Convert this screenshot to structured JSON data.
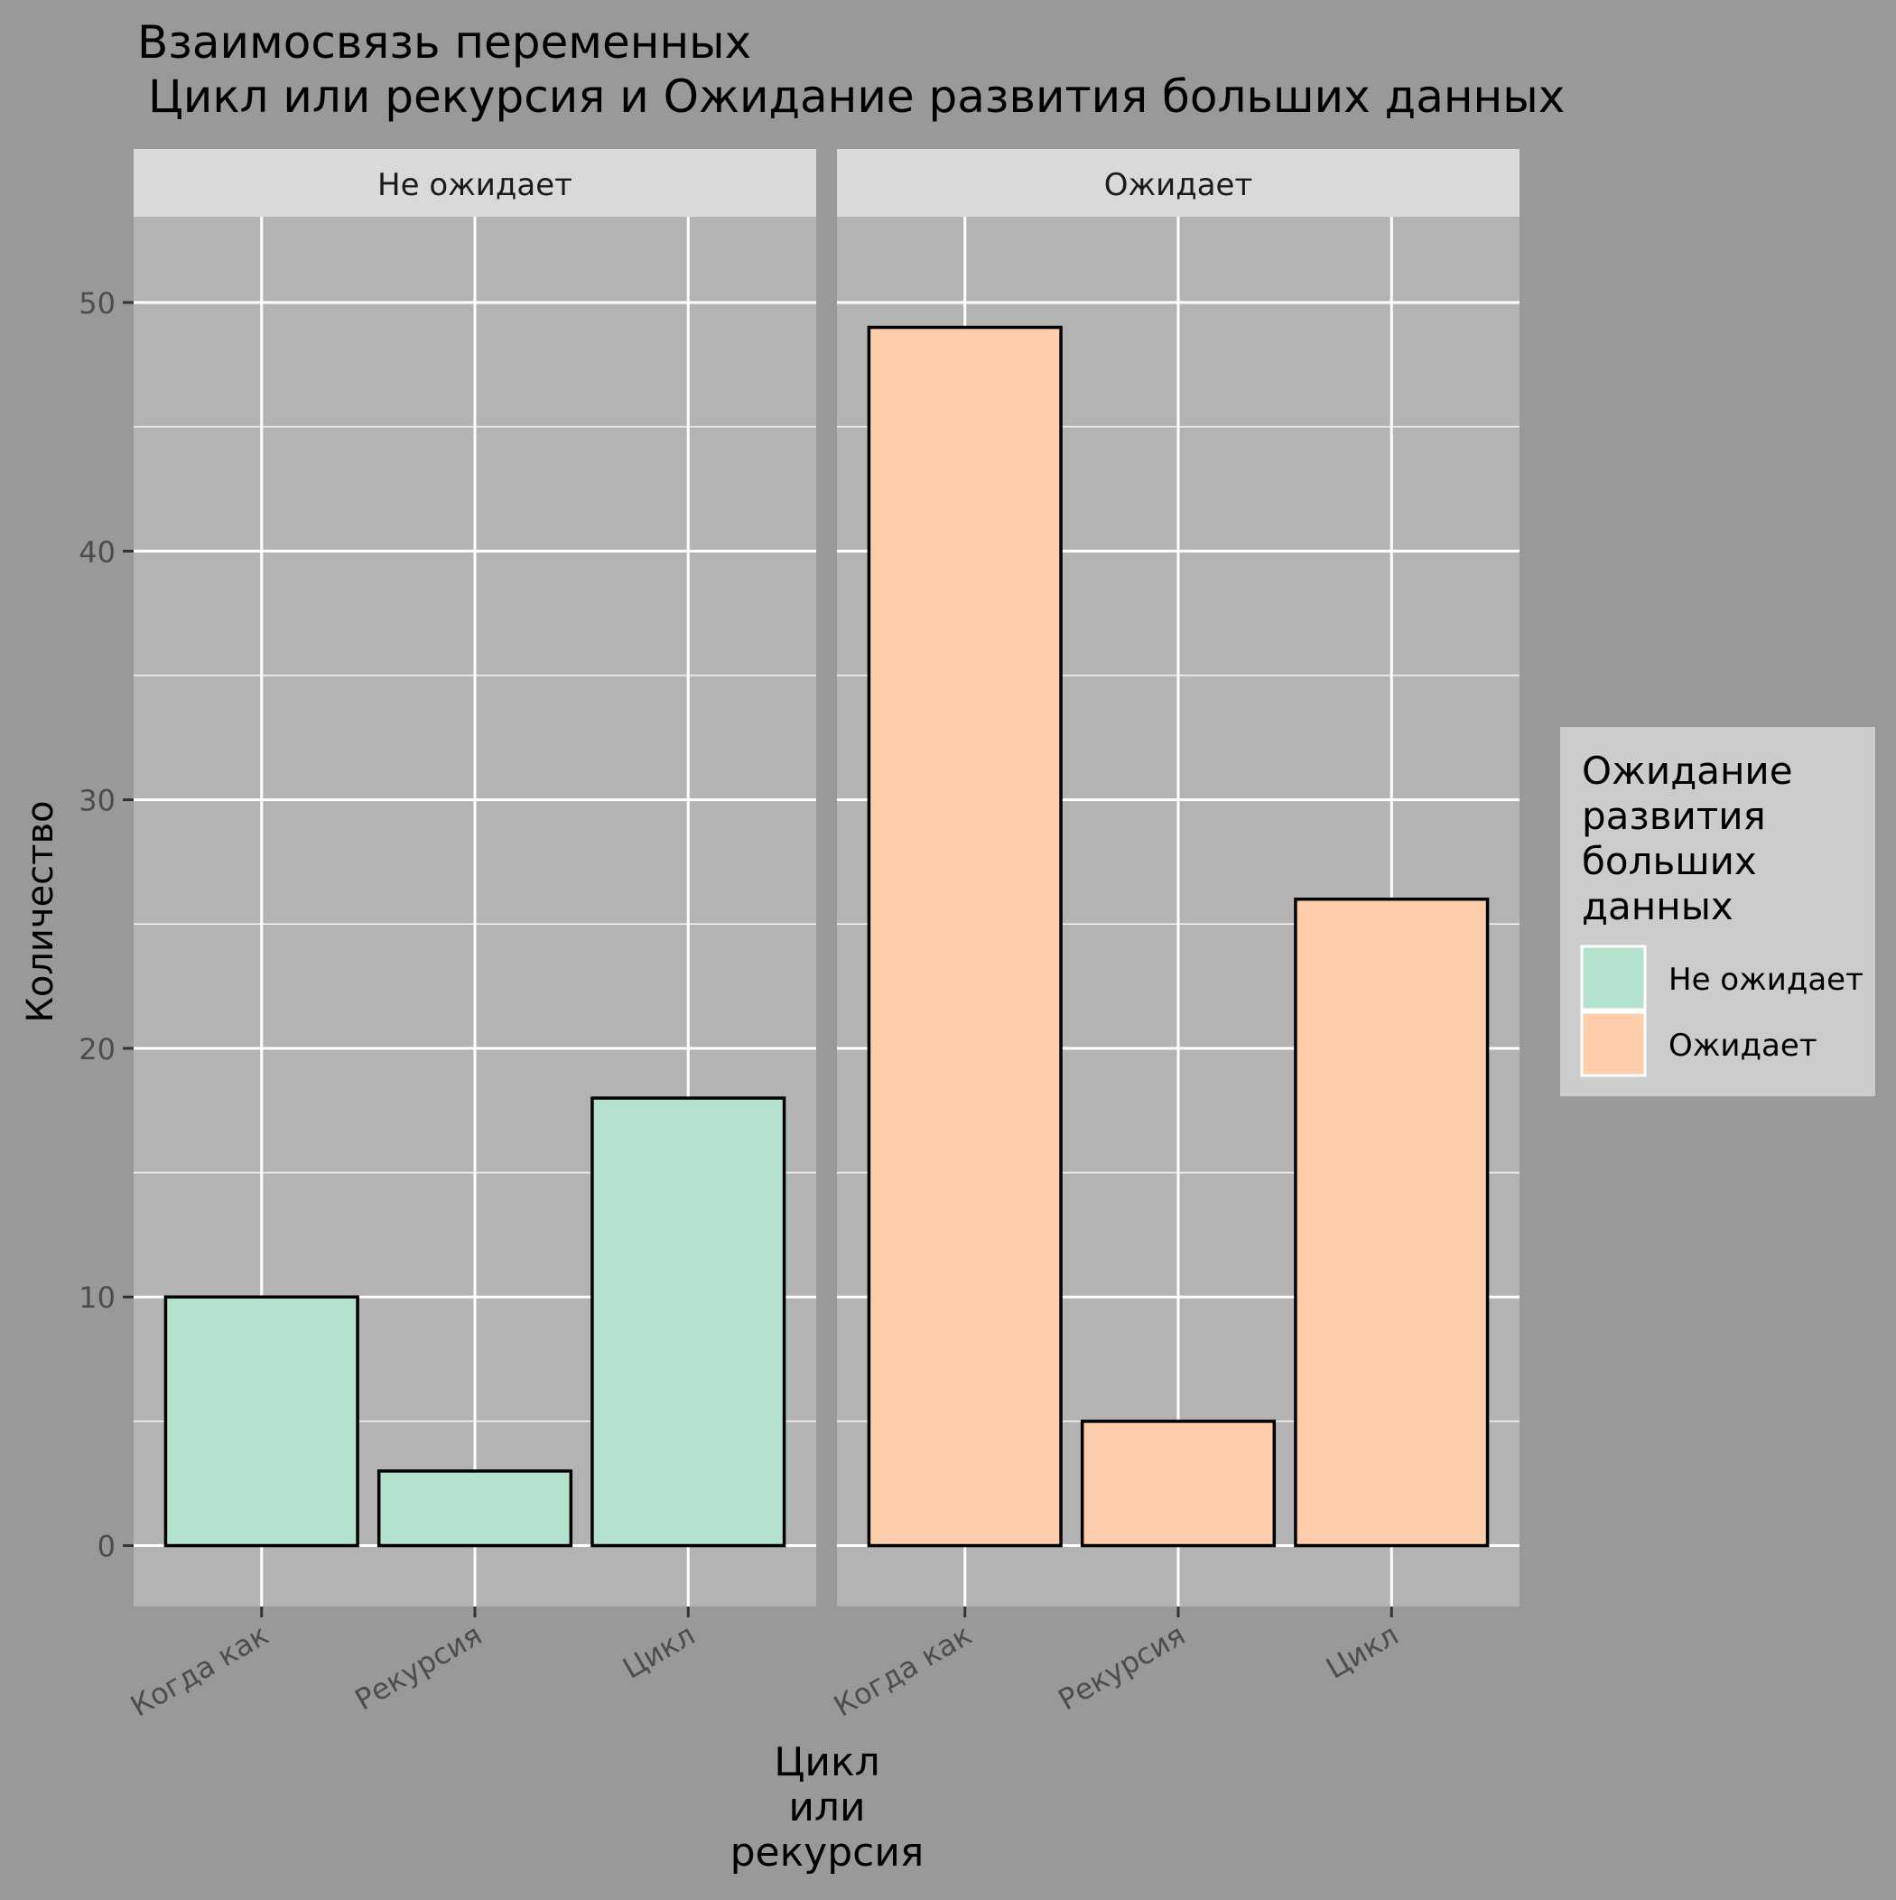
{
  "colors": {
    "page_background": "#999999",
    "panel_background": "#b3b3b3",
    "strip_background": "#d9d9d9",
    "legend_background": "#cccccc",
    "grid": "#ffffff",
    "bar_outline": "#000000",
    "tick_label": "#4d4d4d",
    "text": "#000000"
  },
  "chart_data": {
    "type": "bar",
    "title": "Взаимосвязь переменных",
    "subtitle": "Цикл или рекурсия и Ожидание развития больших данных",
    "xlabel_lines": [
      "Цикл",
      "или",
      "рекурсия"
    ],
    "ylabel": "Количество",
    "ylim": [
      -2.45,
      53.45
    ],
    "yticks": [
      0,
      10,
      20,
      30,
      40,
      50
    ],
    "y_minor_ticks": [
      5,
      15,
      25,
      35,
      45
    ],
    "categories": [
      "Когда как",
      "Рекурсия",
      "Цикл"
    ],
    "grid": true,
    "facets": [
      {
        "label": "Не ожидает",
        "series": "Не ожидает",
        "color": "#b3e2cd",
        "values": [
          10,
          3,
          18
        ]
      },
      {
        "label": "Ожидает",
        "series": "Ожидает",
        "color": "#fdcdac",
        "values": [
          49,
          5,
          26
        ]
      }
    ],
    "legend": {
      "title_lines": [
        "Ожидание",
        "развития",
        "больших",
        "данных"
      ],
      "placement": "right",
      "entries": [
        {
          "label": "Не ожидает",
          "color": "#b3e2cd"
        },
        {
          "label": "Ожидает",
          "color": "#fdcdac"
        }
      ]
    }
  }
}
